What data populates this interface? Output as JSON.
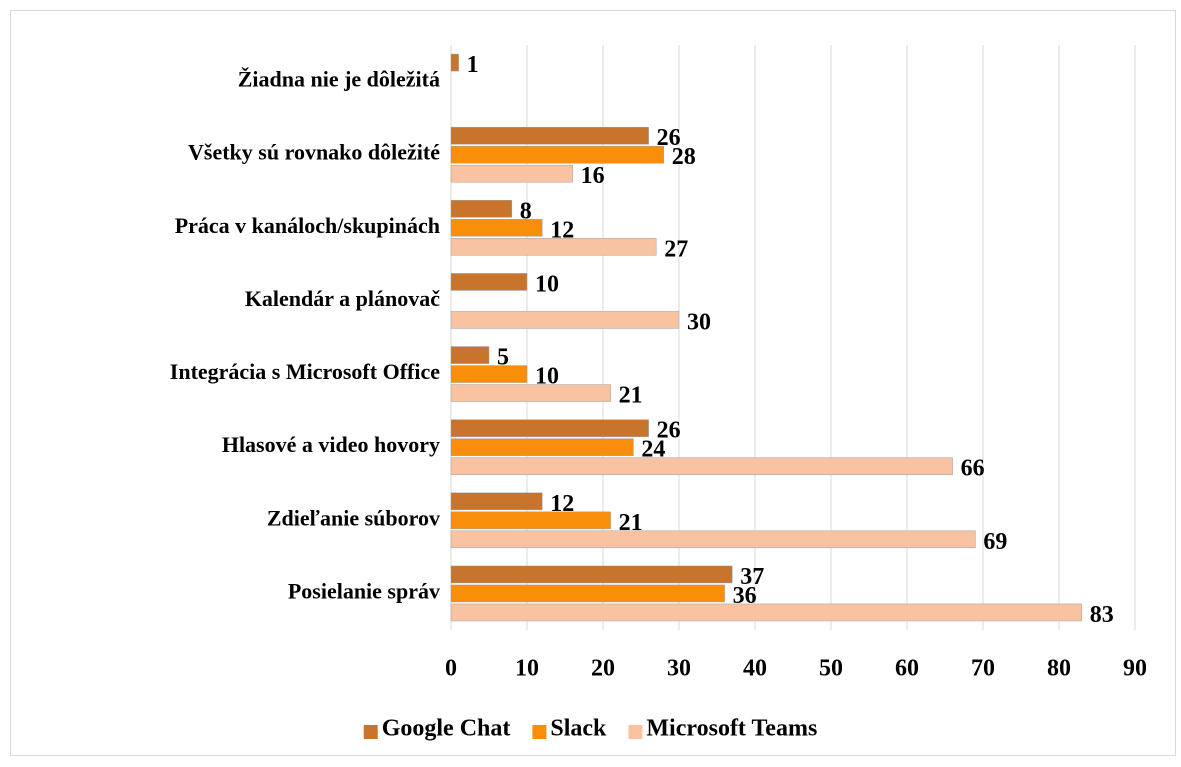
{
  "chart_data": {
    "type": "hbar",
    "categories": [
      "Posielanie správ",
      "Zdieľanie súborov",
      "Hlasové a video hovory",
      "Integrácia s Microsoft Office",
      "Kalendár a plánovač",
      "Práca v kanáloch/skupinách",
      "Všetky sú rovnako dôležité",
      "Žiadna nie je dôležitá"
    ],
    "series": [
      {
        "name": "Google Chat",
        "color": "#c8742c",
        "values": [
          37,
          12,
          26,
          5,
          10,
          8,
          26,
          1
        ]
      },
      {
        "name": "Slack",
        "color": "#f98e0a",
        "values": [
          36,
          21,
          24,
          10,
          null,
          12,
          28,
          null
        ]
      },
      {
        "name": "Microsoft Teams",
        "color": "#f9c3a2",
        "values": [
          83,
          69,
          66,
          21,
          30,
          27,
          16,
          null
        ]
      }
    ],
    "xlim": [
      0,
      90
    ],
    "xticks": [
      0,
      10,
      20,
      30,
      40,
      50,
      60,
      70,
      80,
      90
    ],
    "grid": true,
    "legend": "bottom"
  }
}
